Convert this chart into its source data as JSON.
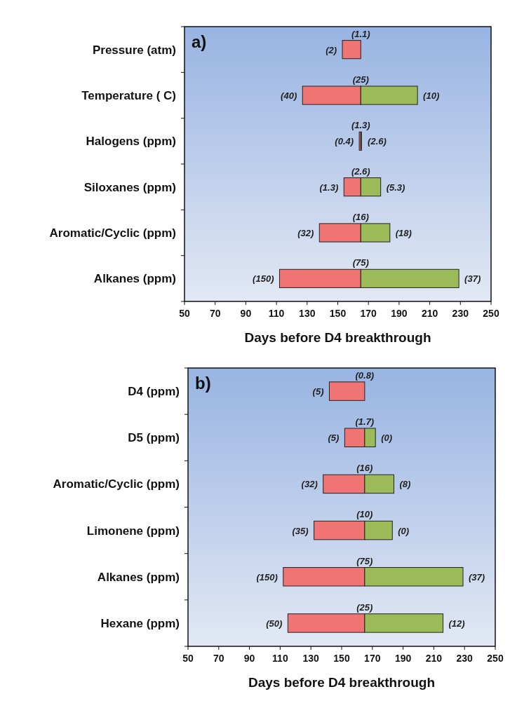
{
  "chart_data": [
    {
      "type": "bar",
      "orientation": "horizontal",
      "xlabel": "Days before D4 breakthrough",
      "categories": [
        "Pressure (atm)",
        "Temperature ( C)",
        "Halogens (ppm)",
        "Siloxanes (ppm)",
        "Aromatic/Cyclic (ppm)",
        "Alkanes (ppm)"
      ],
      "series": [
        {
          "color": "#f07474",
          "base": [
            153,
            127,
            164,
            154,
            138,
            112
          ],
          "values": [
            12,
            38,
            1,
            11,
            27,
            53
          ]
        },
        {
          "color": "#9bbb59",
          "base": [
            null,
            165,
            165,
            165,
            165,
            165
          ],
          "values": [
            null,
            37,
            0.5,
            13,
            19,
            64
          ]
        }
      ],
      "xlim": [
        50,
        250
      ],
      "xticks": [
        50,
        70,
        90,
        110,
        130,
        150,
        170,
        190,
        210,
        230,
        250
      ],
      "annotations": [
        "a)",
        {
          "text": "(1.1)",
          "x": 165,
          "y": "Pressure (atm)"
        },
        {
          "text": "(2)",
          "x": 153,
          "y": "Pressure (atm)"
        },
        {
          "text": "(25)",
          "x": 165,
          "y": "Temperature ( C)"
        },
        {
          "text": "(40)",
          "x": 127,
          "y": "Temperature ( C)"
        },
        {
          "text": "(10)",
          "x": 202,
          "y": "Temperature ( C)"
        },
        {
          "text": "(1.3)",
          "x": 165,
          "y": "Halogens (ppm)"
        },
        {
          "text": "(0.4)",
          "x": 164,
          "y": "Halogens (ppm)"
        },
        {
          "text": "(2.6)",
          "x": 165.5,
          "y": "Halogens (ppm)"
        },
        {
          "text": "(2.6)",
          "x": 165,
          "y": "Siloxanes (ppm)"
        },
        {
          "text": "(1.3)",
          "x": 154,
          "y": "Siloxanes (ppm)"
        },
        {
          "text": "(5.3)",
          "x": 178,
          "y": "Siloxanes (ppm)"
        },
        {
          "text": "(16)",
          "x": 165,
          "y": "Aromatic/Cyclic (ppm)"
        },
        {
          "text": "(32)",
          "x": 138,
          "y": "Aromatic/Cyclic (ppm)"
        },
        {
          "text": "(18)",
          "x": 184,
          "y": "Aromatic/Cyclic (ppm)"
        },
        {
          "text": "(75)",
          "x": 165,
          "y": "Alkanes (ppm)"
        },
        {
          "text": "(150)",
          "x": 112,
          "y": "Alkanes (ppm)"
        },
        {
          "text": "(37)",
          "x": 229,
          "y": "Alkanes (ppm)"
        }
      ]
    },
    {
      "type": "bar",
      "orientation": "horizontal",
      "xlabel": "Days before D4 breakthrough",
      "categories": [
        "D4 (ppm)",
        "D5 (ppm)",
        "Aromatic/Cyclic (ppm)",
        "Limonene (ppm)",
        "Alkanes (ppm)",
        "Hexane (ppm)"
      ],
      "series": [
        {
          "color": "#f07474",
          "base": [
            142,
            152,
            138,
            132,
            112,
            115
          ],
          "values": [
            23,
            13,
            27,
            33,
            53,
            50
          ]
        },
        {
          "color": "#9bbb59",
          "base": [
            null,
            165,
            165,
            165,
            165,
            165
          ],
          "values": [
            null,
            7,
            19,
            18,
            64,
            51
          ]
        }
      ],
      "xlim": [
        50,
        250
      ],
      "xticks": [
        50,
        70,
        90,
        110,
        130,
        150,
        170,
        190,
        210,
        230,
        250
      ],
      "annotations": [
        "b)",
        {
          "text": "(0.8)",
          "x": 165,
          "y": "D4 (ppm)"
        },
        {
          "text": "(5)",
          "x": 142,
          "y": "D4 (ppm)"
        },
        {
          "text": "(1.7)",
          "x": 165,
          "y": "D5 (ppm)"
        },
        {
          "text": "(5)",
          "x": 152,
          "y": "D5 (ppm)"
        },
        {
          "text": "(0)",
          "x": 172,
          "y": "D5 (ppm)"
        },
        {
          "text": "(16)",
          "x": 165,
          "y": "Aromatic/Cyclic (ppm)"
        },
        {
          "text": "(32)",
          "x": 138,
          "y": "Aromatic/Cyclic (ppm)"
        },
        {
          "text": "(8)",
          "x": 184,
          "y": "Aromatic/Cyclic (ppm)"
        },
        {
          "text": "(10)",
          "x": 165,
          "y": "Limonene (ppm)"
        },
        {
          "text": "(35)",
          "x": 132,
          "y": "Limonene (ppm)"
        },
        {
          "text": "(0)",
          "x": 183,
          "y": "Limonene (ppm)"
        },
        {
          "text": "(75)",
          "x": 165,
          "y": "Alkanes (ppm)"
        },
        {
          "text": "(150)",
          "x": 112,
          "y": "Alkanes (ppm)"
        },
        {
          "text": "(37)",
          "x": 229,
          "y": "Alkanes (ppm)"
        },
        {
          "text": "(25)",
          "x": 165,
          "y": "Hexane (ppm)"
        },
        {
          "text": "(50)",
          "x": 115,
          "y": "Hexane (ppm)"
        },
        {
          "text": "(12)",
          "x": 216,
          "y": "Hexane (ppm)"
        }
      ]
    }
  ]
}
